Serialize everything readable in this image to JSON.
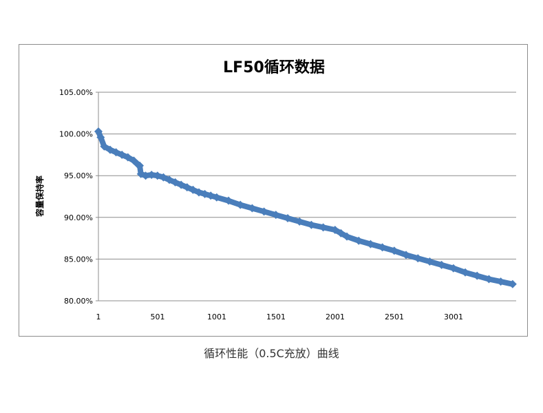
{
  "chart_data": {
    "type": "line",
    "title": "LF50循环数据",
    "xlabel": "",
    "ylabel": "容量保持率",
    "x_ticks": [
      "1",
      "501",
      "1001",
      "1501",
      "2001",
      "2501",
      "3001"
    ],
    "x_tick_values": [
      1,
      501,
      1001,
      1501,
      2001,
      2501,
      3001
    ],
    "xlim": [
      1,
      3530
    ],
    "y_ticks": [
      "80.00%",
      "85.00%",
      "90.00%",
      "95.00%",
      "100.00%",
      "105.00%"
    ],
    "ylim": [
      80,
      105
    ],
    "grid": true,
    "legend": "none",
    "series": [
      {
        "name": "容量保持率",
        "color": "#4a7ebb",
        "x": [
          1,
          20,
          50,
          100,
          150,
          200,
          250,
          300,
          330,
          350,
          360,
          400,
          450,
          500,
          550,
          600,
          650,
          700,
          750,
          800,
          850,
          900,
          950,
          1000,
          1100,
          1200,
          1300,
          1400,
          1500,
          1600,
          1700,
          1800,
          1900,
          2000,
          2050,
          2100,
          2200,
          2300,
          2400,
          2500,
          2600,
          2700,
          2800,
          2900,
          3000,
          3100,
          3200,
          3300,
          3400,
          3500
        ],
        "y": [
          100.3,
          99.6,
          98.5,
          98.1,
          97.8,
          97.5,
          97.2,
          96.8,
          96.4,
          96.2,
          95.2,
          95.0,
          95.1,
          95.0,
          94.8,
          94.5,
          94.2,
          93.9,
          93.6,
          93.3,
          93.0,
          92.8,
          92.6,
          92.4,
          92.0,
          91.5,
          91.1,
          90.7,
          90.3,
          89.9,
          89.5,
          89.1,
          88.8,
          88.5,
          88.1,
          87.7,
          87.2,
          86.8,
          86.4,
          86.0,
          85.5,
          85.1,
          84.7,
          84.3,
          83.9,
          83.4,
          83.0,
          82.6,
          82.3,
          82.0
        ]
      }
    ],
    "caption": "循环性能（0.5C充放）曲线"
  }
}
